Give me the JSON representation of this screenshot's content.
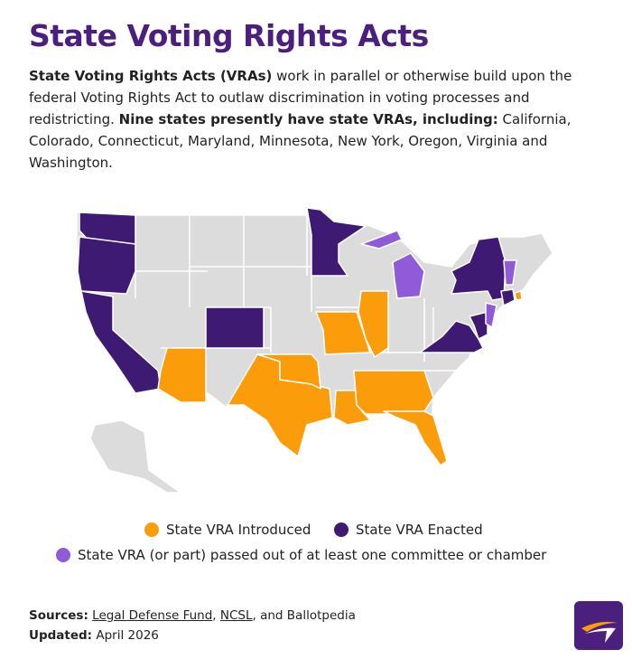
{
  "header": {
    "title": "State Voting Rights Acts"
  },
  "intro": {
    "lead": "State Voting Rights Acts (VRAs)",
    "text1": " work in parallel or otherwise build upon the federal Voting Rights Act to outlaw discrimination in voting processes and redistricting. ",
    "bold": "Nine states presently have state VRAs, including:",
    "text2": " California, Colorado, Connecticut, Maryland, Minnesota, New York, Oregon, Virginia and Washington."
  },
  "legend": {
    "items": [
      {
        "label": "State VRA Introduced",
        "color": "#fb9d0a"
      },
      {
        "label": "State VRA Enacted",
        "color": "#3f1a72"
      },
      {
        "label": "State VRA (or part) passed out of at least one committee or chamber",
        "color": "#8f5bd8"
      }
    ]
  },
  "footer": {
    "sources_label": "Sources:",
    "sources_parts": [
      "Legal Defense Fund",
      ", ",
      "NCSL",
      ", and Ballotpedia"
    ],
    "updated_label": "Updated:",
    "updated": "April 2026"
  }
}
